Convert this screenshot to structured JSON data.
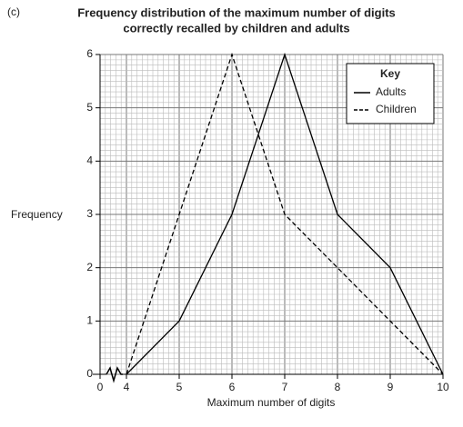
{
  "chart_data": {
    "type": "line",
    "question_label": "(c)",
    "title": [
      "Frequency distribution of the maximum number of digits",
      "correctly recalled by children and adults"
    ],
    "x_label": "Maximum number of digits",
    "y_label": "Frequency",
    "x": [
      4,
      5,
      6,
      7,
      8,
      9,
      10
    ],
    "series": [
      {
        "name": "Adults",
        "color": "#000000",
        "dash": "solid",
        "values": [
          0,
          1,
          3,
          6,
          3,
          2,
          0
        ]
      },
      {
        "name": "Children",
        "color": "#000000",
        "dash": "dashed",
        "values": [
          0,
          3,
          6,
          3,
          2,
          1,
          0
        ]
      }
    ],
    "xlim": [
      3.5,
      10
    ],
    "xticks": [
      0,
      4,
      5,
      6,
      7,
      8,
      9,
      10
    ],
    "ylim": [
      0,
      6
    ],
    "yticks": [
      0,
      1,
      2,
      3,
      4,
      5,
      6
    ],
    "grid": true,
    "axis_break": true,
    "legend_title": "Key",
    "legend": "top-right"
  }
}
